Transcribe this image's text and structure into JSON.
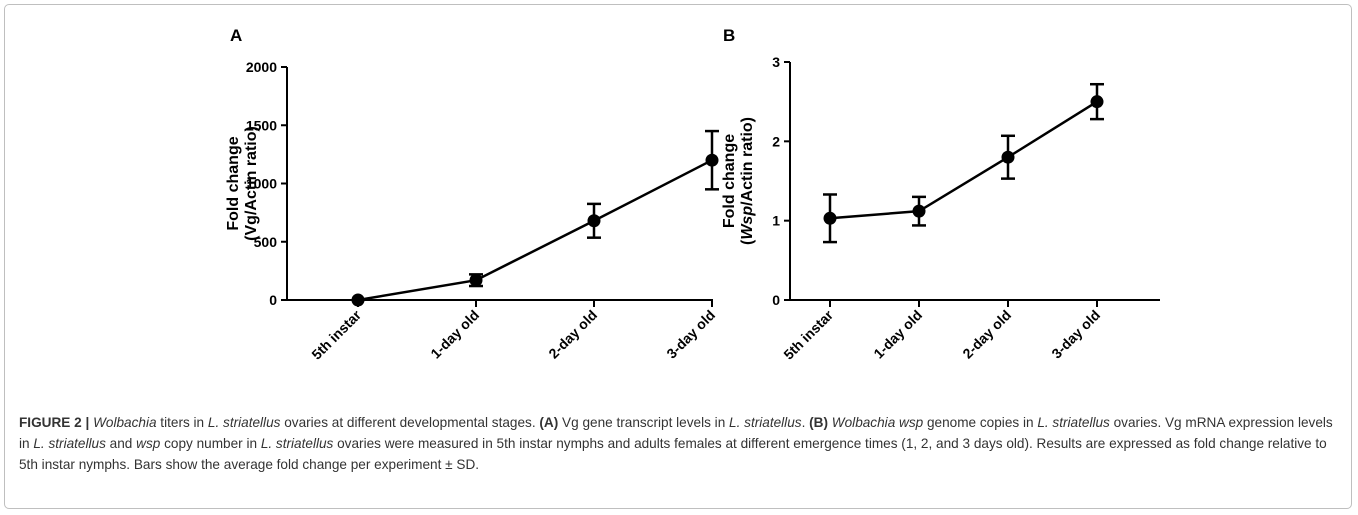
{
  "chart_data": [
    {
      "panel": "A",
      "type": "line",
      "categories": [
        "5th instar",
        "1-day old",
        "2-day old",
        "3-day old"
      ],
      "values": [
        0,
        170,
        680,
        1200
      ],
      "error": [
        0,
        50,
        145,
        250
      ],
      "ylabel_line1": "Fold change",
      "ylabel_line2": "(Vg/Actin ratio)",
      "ylim": [
        0,
        2000
      ],
      "yticks": [
        0,
        500,
        1000,
        1500,
        2000
      ],
      "xlabel": "",
      "grid": false
    },
    {
      "panel": "B",
      "type": "line",
      "categories": [
        "5th instar",
        "1-day old",
        "2-day old",
        "3-day old"
      ],
      "values": [
        1.03,
        1.12,
        1.8,
        2.5
      ],
      "error": [
        0.3,
        0.18,
        0.27,
        0.22
      ],
      "ylabel_line1": "Fold change",
      "ylabel_line2_prefix": "(",
      "ylabel_line2_italic": "Wsp",
      "ylabel_line2_suffix": "/Actin ratio)",
      "ylim": [
        0,
        3
      ],
      "yticks": [
        0,
        1,
        2,
        3
      ],
      "xlabel": "",
      "grid": false
    }
  ],
  "caption": {
    "figure_label": "FIGURE 2 |",
    "seg1_italic": "Wolbachia",
    "seg2": " titers in ",
    "seg3_italic": "L. striatellus",
    "seg4": " ovaries at different developmental stages. ",
    "seg5_bold": "(A)",
    "seg6": " Vg gene transcript levels in ",
    "seg7_italic": "L. striatellus",
    "seg8": ". ",
    "seg9_bold": "(B)",
    "seg10": " ",
    "seg11_italic": "Wolbachia wsp",
    "seg12": " genome copies in ",
    "seg13_italic": "L. striatellus",
    "seg14": " ovaries. Vg mRNA expression levels in ",
    "seg15_italic": "L. striatellus",
    "seg16": " and ",
    "seg17_italic": "wsp",
    "seg18": " copy number in ",
    "seg19_italic": "L. striatellus",
    "seg20": " ovaries were measured in 5th instar nymphs and adults females at different emergence times (1, 2, and 3 days old). Results are expressed as fold change relative to 5th instar nymphs. Bars show the average fold change per experiment ± SD."
  }
}
